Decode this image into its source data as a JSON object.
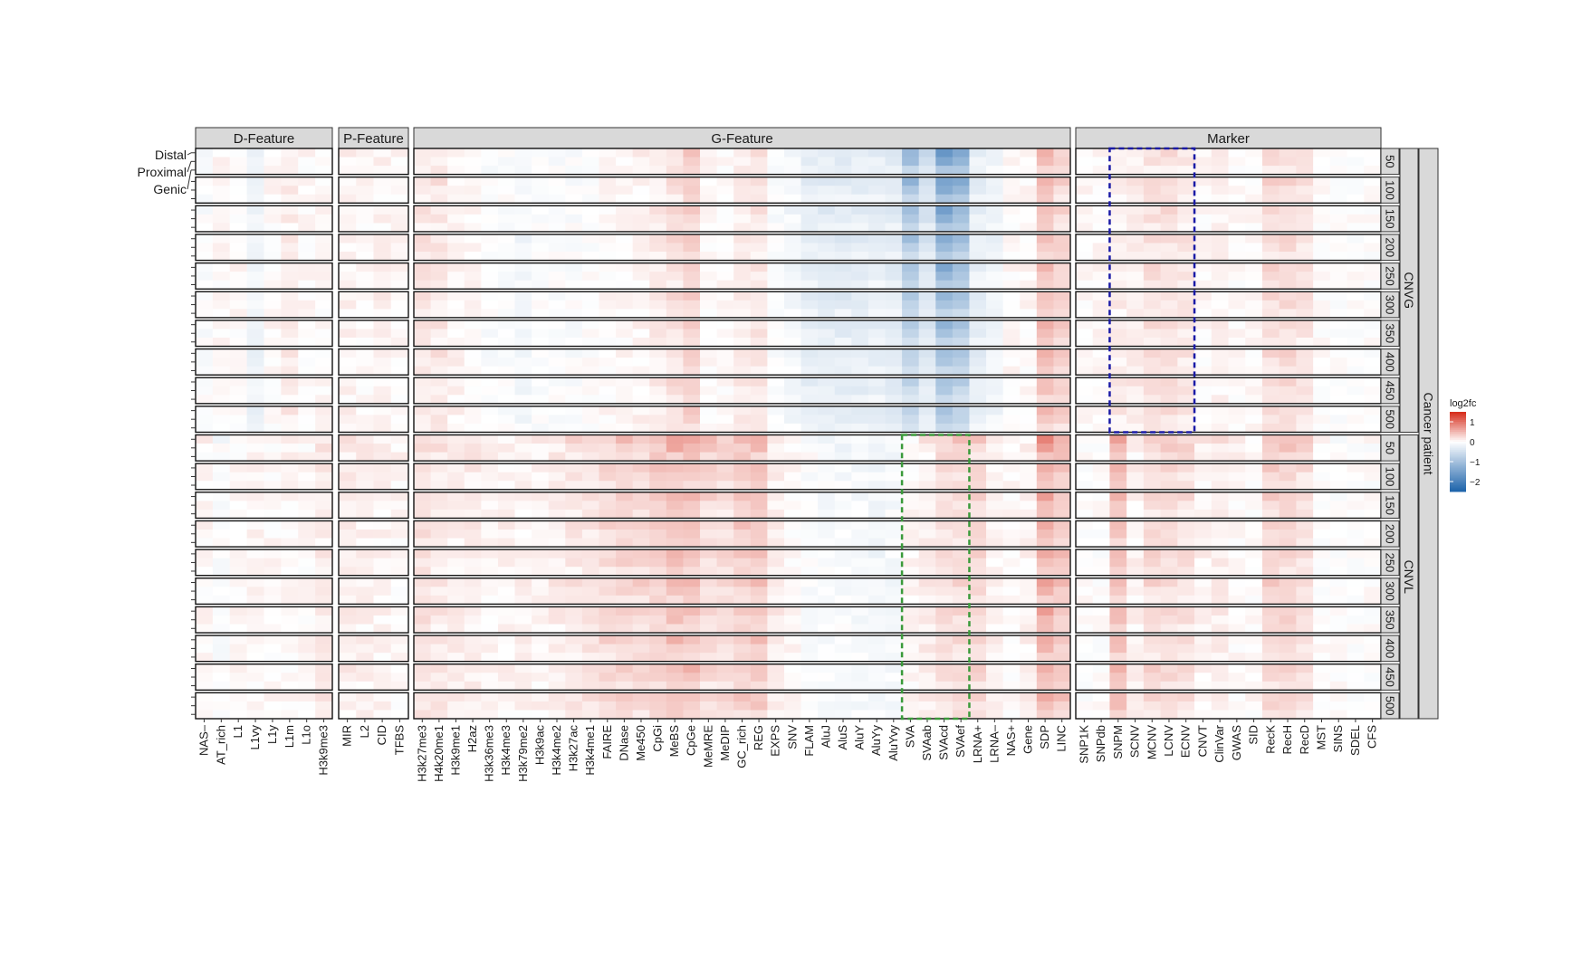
{
  "chart_data": {
    "type": "heatmap",
    "facet_columns": [
      {
        "label": "D-Feature",
        "features": [
          "NAS–",
          "AT_rich",
          "L1",
          "L1vy",
          "L1y",
          "L1m",
          "L1o",
          "H3k9me3"
        ]
      },
      {
        "label": "P-Feature",
        "features": [
          "MIR",
          "L2",
          "CID",
          "TFBS"
        ]
      },
      {
        "label": "G-Feature",
        "features": [
          "H3k27me3",
          "H4k20me1",
          "H3k9me1",
          "H2az",
          "H3k36me3",
          "H3k4me3",
          "H3k79me2",
          "H3k9ac",
          "H3k4me2",
          "H3k27ac",
          "H3k4me1",
          "FAIRE",
          "DNase",
          "Me450",
          "CpGi",
          "MeBS",
          "CpGe",
          "MeMRE",
          "MeDIP",
          "GC_rich",
          "REG",
          "EXPS",
          "SNV",
          "FLAM",
          "AluJ",
          "AluS",
          "AluY",
          "AluYy",
          "AluYvy",
          "SVA",
          "SVAab",
          "SVAcd",
          "SVAef",
          "LRNA+",
          "LRNA–",
          "NAS+",
          "Gene",
          "SDP",
          "LINC"
        ]
      },
      {
        "label": "Marker",
        "features": [
          "SNP1K",
          "SNPdb",
          "SNPM",
          "SCNV",
          "MCNV",
          "LCNV",
          "ECNV",
          "CNVT",
          "ClinVar",
          "GWAS",
          "SID",
          "RecK",
          "RecH",
          "RecD",
          "MST",
          "SINS",
          "SDEL",
          "CFS"
        ]
      }
    ],
    "facet_rows": {
      "outer_label": "Cancer patient",
      "groups": [
        {
          "label": "CNVG",
          "sizes": [
            "50",
            "100",
            "150",
            "200",
            "250",
            "300",
            "350",
            "400",
            "450",
            "500"
          ]
        },
        {
          "label": "CNVL",
          "sizes": [
            "50",
            "100",
            "150",
            "200",
            "250",
            "300",
            "350",
            "400",
            "450",
            "500"
          ]
        }
      ]
    },
    "row_labels": [
      "Distal",
      "Proximal",
      "Genic"
    ],
    "legend": {
      "title": "log2fc",
      "ticks": [
        "1",
        "0",
        "−1",
        "−2"
      ],
      "min": -2.5,
      "max": 1.5,
      "low_color": "#2166ac",
      "mid_color": "#ffffff",
      "high_color": "#d7301f",
      "placement": "right"
    },
    "highlight_boxes": [
      {
        "panel_column": "Marker",
        "row_group": "CNVG",
        "features_from": "SNPM",
        "features_to": "ECNV",
        "sizes_from": "50",
        "sizes_to": "500",
        "color": "#1a1aa6",
        "style": "dashed"
      },
      {
        "panel_column": "G-Feature",
        "row_group": "CNVL",
        "features_from": "SVA",
        "features_to": "SVAef",
        "sizes_from": "50",
        "sizes_to": "500",
        "color": "#3a9a3a",
        "style": "dashed"
      }
    ],
    "feature_profiles": {
      "CNVG": {
        "NAS–": -0.05,
        "AT_rich": 0.05,
        "L1": 0.05,
        "L1vy": -0.2,
        "L1y": 0.05,
        "L1m": 0.15,
        "L1o": 0.05,
        "H3k9me3": 0.05,
        "MIR": 0.1,
        "L2": 0.05,
        "CID": 0.1,
        "TFBS": 0.05,
        "H3k27me3": 0.2,
        "H4k20me1": 0.2,
        "H3k9me1": 0.1,
        "H2az": 0.05,
        "H3k36me3": -0.05,
        "H3k4me3": -0.05,
        "H3k79me2": -0.15,
        "H3k9ac": -0.05,
        "H3k4me2": -0.05,
        "H3k27ac": -0.05,
        "H3k4me1": 0.0,
        "FAIRE": 0.05,
        "DNase": 0.05,
        "Me450": 0.1,
        "CpGi": 0.15,
        "MeBS": 0.25,
        "CpGe": 0.4,
        "MeMRE": 0.05,
        "MeDIP": 0.05,
        "GC_rich": 0.15,
        "REG": 0.2,
        "EXPS": -0.05,
        "SNV": -0.15,
        "FLAM": -0.3,
        "AluJ": -0.35,
        "AluS": -0.35,
        "AluY": -0.35,
        "AluYy": -0.3,
        "AluYvy": -0.35,
        "SVA": -1.2,
        "SVAab": -0.6,
        "SVAcd": -1.7,
        "SVAef": -1.4,
        "LRNA+": -0.3,
        "LRNA–": -0.2,
        "NAS+": 0.05,
        "Gene": 0.05,
        "SDP": 0.5,
        "LINC": 0.35,
        "SNP1K": 0.05,
        "SNPdb": 0.05,
        "SNPM": 0.15,
        "SCNV": 0.15,
        "MCNV": 0.25,
        "LCNV": 0.25,
        "ECNV": 0.2,
        "CNVT": 0.05,
        "ClinVar": 0.1,
        "GWAS": 0.05,
        "SID": 0.05,
        "RecK": 0.3,
        "RecH": 0.3,
        "RecD": 0.2,
        "MST": 0.0,
        "SINS": 0.0,
        "SDEL": 0.0,
        "CFS": 0.0
      },
      "CNVL": {
        "NAS–": 0.05,
        "AT_rich": -0.05,
        "L1": 0.05,
        "L1vy": 0.1,
        "L1y": 0.05,
        "L1m": 0.05,
        "L1o": 0.05,
        "H3k9me3": 0.15,
        "MIR": 0.15,
        "L2": 0.1,
        "CID": 0.1,
        "TFBS": 0.05,
        "H3k27me3": 0.25,
        "H4k20me1": 0.2,
        "H3k9me1": 0.15,
        "H2az": 0.15,
        "H3k36me3": 0.1,
        "H3k4me3": 0.1,
        "H3k79me2": 0.1,
        "H3k9ac": 0.1,
        "H3k4me2": 0.15,
        "H3k27ac": 0.2,
        "H3k4me1": 0.2,
        "FAIRE": 0.3,
        "DNase": 0.35,
        "Me450": 0.35,
        "CpGi": 0.4,
        "MeBS": 0.5,
        "CpGe": 0.5,
        "MeMRE": 0.3,
        "MeDIP": 0.3,
        "GC_rich": 0.4,
        "REG": 0.45,
        "EXPS": 0.15,
        "SNV": 0.05,
        "FLAM": -0.05,
        "AluJ": -0.1,
        "AluS": -0.1,
        "AluY": -0.1,
        "AluYy": -0.15,
        "AluYvy": -0.1,
        "SVA": 0.05,
        "SVAab": 0.15,
        "SVAcd": 0.25,
        "SVAef": 0.3,
        "LRNA+": 0.3,
        "LRNA–": 0.1,
        "NAS+": 0.05,
        "Gene": 0.1,
        "SDP": 0.65,
        "LINC": 0.45,
        "SNP1K": 0.0,
        "SNPdb": 0.0,
        "SNPM": 0.55,
        "SCNV": 0.1,
        "MCNV": 0.3,
        "LCNV": 0.3,
        "ECNV": 0.25,
        "CNVT": 0.1,
        "ClinVar": 0.15,
        "GWAS": 0.05,
        "SID": 0.05,
        "RecK": 0.35,
        "RecH": 0.35,
        "RecD": 0.25,
        "MST": 0.0,
        "SINS": 0.0,
        "SDEL": 0.0,
        "CFS": 0.0
      }
    },
    "cell_value_note": "cell value = profile[feature] × distal/proximal/genic weight (1.0 / 0.8 / 0.6) with small per-size variation"
  }
}
